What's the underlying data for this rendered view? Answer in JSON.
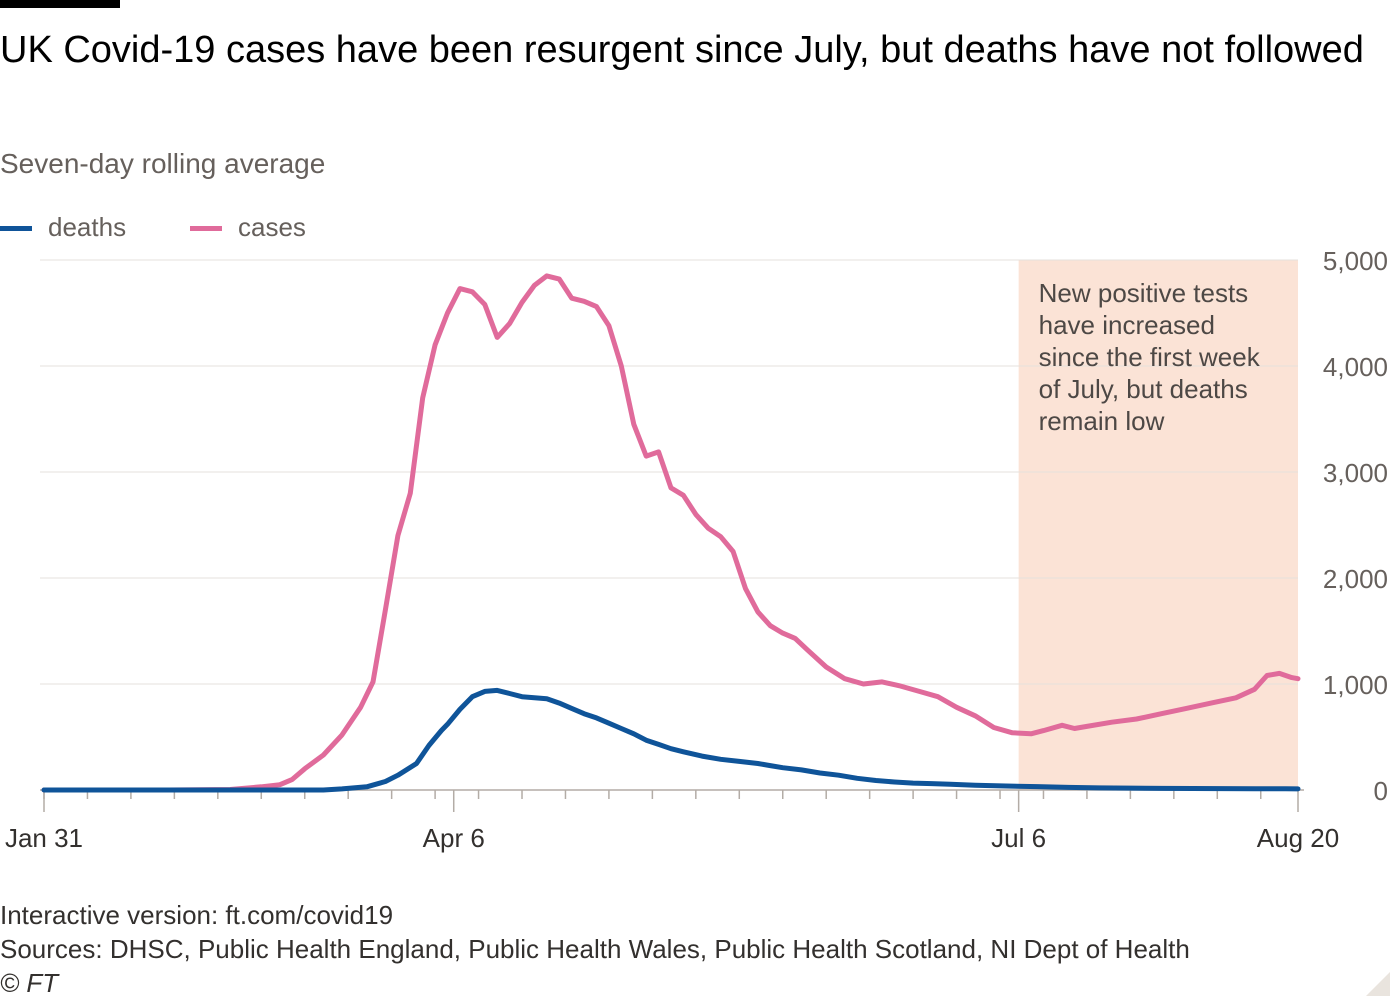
{
  "header": {
    "title": "UK Covid-19 cases have been resurgent since July, but deaths have not followed",
    "subtitle": "Seven-day rolling average"
  },
  "legend": [
    {
      "label": "deaths",
      "color": "#0f5499"
    },
    {
      "label": "cases",
      "color": "#e06b9b"
    }
  ],
  "annotation": {
    "lines": [
      "New positive tests",
      "have increased",
      "since the first week",
      "of July, but deaths",
      "remain low"
    ],
    "color": "#fbe3d6"
  },
  "footer": {
    "interactive": "Interactive version: ft.com/covid19",
    "sources": "Sources: DHSC, Public Health England, Public Health Wales, Public Health Scotland, NI Dept of Health",
    "credit": "© FT"
  },
  "chart_data": {
    "type": "line",
    "title": "UK Covid-19 cases have been resurgent since July, but deaths have not followed",
    "subtitle": "Seven-day rolling average",
    "xlabel": "",
    "ylabel": "",
    "x_range_days": [
      0,
      202
    ],
    "ylim": [
      0,
      5000
    ],
    "y_ticks": [
      0,
      1000,
      2000,
      3000,
      4000,
      5000
    ],
    "y_tick_labels": [
      "0",
      "1,000",
      "2,000",
      "3,000",
      "4,000",
      "5,000"
    ],
    "x_ticks": [
      {
        "day": 0,
        "label": "Jan 31"
      },
      {
        "day": 66,
        "label": "Apr 6"
      },
      {
        "day": 157,
        "label": "Jul 6"
      },
      {
        "day": 202,
        "label": "Aug 20"
      }
    ],
    "shaded_region_days": [
      157,
      202
    ],
    "series": [
      {
        "name": "cases",
        "color": "#e06b9b",
        "points": [
          [
            0,
            0
          ],
          [
            20,
            0
          ],
          [
            30,
            5
          ],
          [
            35,
            30
          ],
          [
            38,
            50
          ],
          [
            40,
            100
          ],
          [
            42,
            200
          ],
          [
            45,
            330
          ],
          [
            48,
            520
          ],
          [
            51,
            780
          ],
          [
            53,
            1020
          ],
          [
            55,
            1700
          ],
          [
            57,
            2400
          ],
          [
            59,
            2800
          ],
          [
            61,
            3700
          ],
          [
            63,
            4200
          ],
          [
            65,
            4500
          ],
          [
            67,
            4730
          ],
          [
            69,
            4700
          ],
          [
            71,
            4580
          ],
          [
            73,
            4270
          ],
          [
            75,
            4400
          ],
          [
            77,
            4600
          ],
          [
            79,
            4760
          ],
          [
            81,
            4850
          ],
          [
            83,
            4820
          ],
          [
            85,
            4640
          ],
          [
            87,
            4610
          ],
          [
            89,
            4560
          ],
          [
            91,
            4380
          ],
          [
            93,
            4000
          ],
          [
            95,
            3450
          ],
          [
            97,
            3150
          ],
          [
            99,
            3190
          ],
          [
            101,
            2850
          ],
          [
            103,
            2780
          ],
          [
            105,
            2600
          ],
          [
            107,
            2470
          ],
          [
            109,
            2390
          ],
          [
            111,
            2250
          ],
          [
            113,
            1900
          ],
          [
            115,
            1680
          ],
          [
            117,
            1550
          ],
          [
            119,
            1480
          ],
          [
            121,
            1430
          ],
          [
            123,
            1320
          ],
          [
            126,
            1160
          ],
          [
            129,
            1050
          ],
          [
            132,
            1000
          ],
          [
            135,
            1020
          ],
          [
            138,
            980
          ],
          [
            141,
            930
          ],
          [
            144,
            880
          ],
          [
            147,
            780
          ],
          [
            150,
            700
          ],
          [
            153,
            590
          ],
          [
            156,
            540
          ],
          [
            159,
            530
          ],
          [
            161,
            560
          ],
          [
            164,
            610
          ],
          [
            166,
            580
          ],
          [
            168,
            600
          ],
          [
            172,
            640
          ],
          [
            176,
            670
          ],
          [
            180,
            720
          ],
          [
            184,
            770
          ],
          [
            188,
            820
          ],
          [
            192,
            870
          ],
          [
            195,
            950
          ],
          [
            197,
            1080
          ],
          [
            199,
            1100
          ],
          [
            201,
            1060
          ],
          [
            202,
            1050
          ]
        ]
      },
      {
        "name": "deaths",
        "color": "#0f5499",
        "points": [
          [
            0,
            0
          ],
          [
            45,
            0
          ],
          [
            48,
            10
          ],
          [
            52,
            30
          ],
          [
            55,
            80
          ],
          [
            57,
            140
          ],
          [
            60,
            250
          ],
          [
            62,
            420
          ],
          [
            64,
            560
          ],
          [
            65,
            620
          ],
          [
            67,
            760
          ],
          [
            69,
            880
          ],
          [
            71,
            930
          ],
          [
            73,
            940
          ],
          [
            75,
            910
          ],
          [
            77,
            880
          ],
          [
            79,
            870
          ],
          [
            81,
            860
          ],
          [
            83,
            820
          ],
          [
            85,
            770
          ],
          [
            87,
            720
          ],
          [
            89,
            680
          ],
          [
            91,
            630
          ],
          [
            93,
            580
          ],
          [
            95,
            530
          ],
          [
            97,
            470
          ],
          [
            99,
            430
          ],
          [
            101,
            390
          ],
          [
            103,
            360
          ],
          [
            106,
            320
          ],
          [
            109,
            290
          ],
          [
            112,
            270
          ],
          [
            115,
            250
          ],
          [
            117,
            230
          ],
          [
            119,
            210
          ],
          [
            122,
            190
          ],
          [
            125,
            160
          ],
          [
            128,
            140
          ],
          [
            131,
            110
          ],
          [
            134,
            90
          ],
          [
            137,
            75
          ],
          [
            140,
            65
          ],
          [
            143,
            60
          ],
          [
            146,
            55
          ],
          [
            150,
            45
          ],
          [
            155,
            38
          ],
          [
            160,
            32
          ],
          [
            165,
            25
          ],
          [
            170,
            20
          ],
          [
            175,
            18
          ],
          [
            180,
            15
          ],
          [
            185,
            14
          ],
          [
            190,
            13
          ],
          [
            195,
            12
          ],
          [
            200,
            11
          ],
          [
            202,
            10
          ]
        ]
      }
    ]
  }
}
